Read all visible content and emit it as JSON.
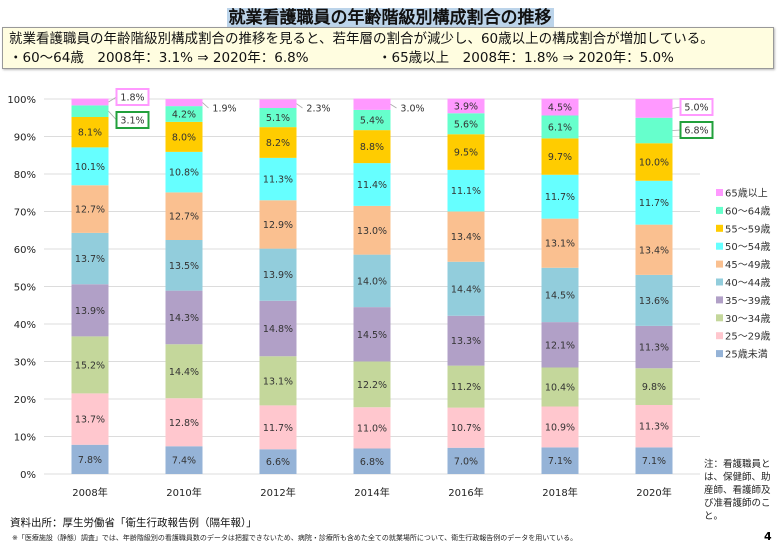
{
  "title": "就業看護職員の年齢階級別構成割合の推移",
  "summary": {
    "line1": "就業看護職員の年齢階級別構成割合の推移を見ると、若年層の割合が減少し、60歳以上の構成割合が増加している。",
    "bullet1": "・60～64歳　2008年：3.1% ⇒ 2020年：6.8%",
    "bullet2": "・65歳以上　2008年：1.8% ⇒ 2020年：5.0%"
  },
  "chart_data": {
    "type": "bar",
    "stacked": true,
    "categories": [
      "2008年",
      "2010年",
      "2012年",
      "2014年",
      "2016年",
      "2018年",
      "2020年"
    ],
    "ylim": [
      0,
      100
    ],
    "yticks": [
      "0%",
      "10%",
      "20%",
      "30%",
      "40%",
      "50%",
      "60%",
      "70%",
      "80%",
      "90%",
      "100%"
    ],
    "grid": true,
    "legend_position": "right",
    "series": [
      {
        "name": "25歳未満",
        "color": "#95b3d7",
        "values": [
          7.8,
          7.4,
          6.6,
          6.8,
          7.0,
          7.1,
          7.1
        ]
      },
      {
        "name": "25～29歳",
        "color": "#ffc7ce",
        "values": [
          13.7,
          12.8,
          11.7,
          11.0,
          10.7,
          10.9,
          11.3
        ]
      },
      {
        "name": "30～34歳",
        "color": "#c4d79b",
        "values": [
          15.2,
          14.4,
          13.1,
          12.2,
          11.2,
          10.4,
          9.8
        ]
      },
      {
        "name": "35～39歳",
        "color": "#b1a0c7",
        "values": [
          13.9,
          14.3,
          14.8,
          14.5,
          13.3,
          12.1,
          11.3
        ]
      },
      {
        "name": "40～44歳",
        "color": "#92cddc",
        "values": [
          13.7,
          13.5,
          13.9,
          14.0,
          14.4,
          14.5,
          13.6
        ]
      },
      {
        "name": "45～49歳",
        "color": "#fac090",
        "values": [
          12.7,
          12.7,
          12.9,
          13.0,
          13.4,
          13.1,
          13.4
        ]
      },
      {
        "name": "50～54歳",
        "color": "#66ffff",
        "values": [
          10.1,
          10.8,
          11.3,
          11.4,
          11.1,
          11.7,
          11.7
        ]
      },
      {
        "name": "55～59歳",
        "color": "#ffcc00",
        "values": [
          8.1,
          8.0,
          8.2,
          8.8,
          9.5,
          9.7,
          10.0
        ]
      },
      {
        "name": "60～64歳",
        "color": "#66ffcc",
        "values": [
          3.1,
          4.2,
          5.1,
          5.4,
          5.6,
          6.1,
          6.8
        ]
      },
      {
        "name": "65歳以上",
        "color": "#ff99ff",
        "values": [
          1.8,
          1.9,
          2.3,
          3.0,
          3.9,
          4.5,
          5.0
        ]
      }
    ],
    "highlight_colors": {
      "65歳以上": "#ff99ff",
      "60～64歳": "#22a03c"
    }
  },
  "note": "注：看護職員とは、保健師、助産師、看護師及び准看護師のこと。",
  "source": "資料出所：厚生労働省「衛生行政報告例（隔年報）」",
  "footnote": "※「医療施設（静態）調査」では、年齢階級別の看護職員数のデータは把握できないため、病院・診療所も含めた全ての就業場所について、衛生行政報告例のデータを用いている。",
  "page_number": "4"
}
